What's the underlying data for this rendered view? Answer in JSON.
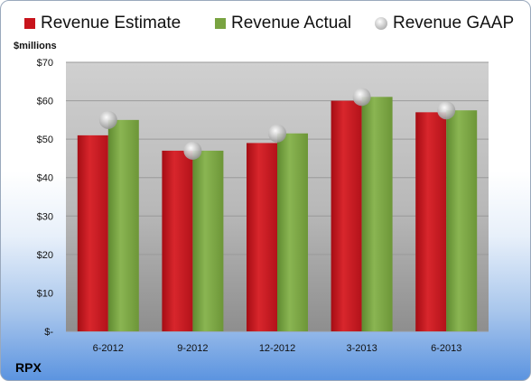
{
  "unit_label": "$millions",
  "entity_label": "RPX",
  "chart_data": {
    "type": "bar",
    "title": "",
    "xlabel": "",
    "ylabel": "$millions",
    "categories": [
      "6-2012",
      "9-2012",
      "12-2012",
      "3-2013",
      "6-2013"
    ],
    "ylim": [
      0,
      70
    ],
    "yticks": [
      0,
      10,
      20,
      30,
      40,
      50,
      60,
      70
    ],
    "ytick_labels": [
      "$-",
      "$10",
      "$20",
      "$30",
      "$40",
      "$50",
      "$60",
      "$70"
    ],
    "grid": true,
    "legend_position": "top",
    "series": [
      {
        "name": "Revenue Estimate",
        "kind": "bar",
        "color": "#c8141c",
        "values": [
          51,
          47,
          49,
          60,
          57
        ]
      },
      {
        "name": "Revenue Actual",
        "kind": "bar",
        "color": "#79a341",
        "values": [
          55,
          47,
          51.5,
          61,
          57.5
        ]
      },
      {
        "name": "Revenue GAAP",
        "kind": "marker",
        "color": "#c0c0c0",
        "values": [
          55,
          47,
          51.5,
          61,
          57.5
        ]
      }
    ]
  }
}
